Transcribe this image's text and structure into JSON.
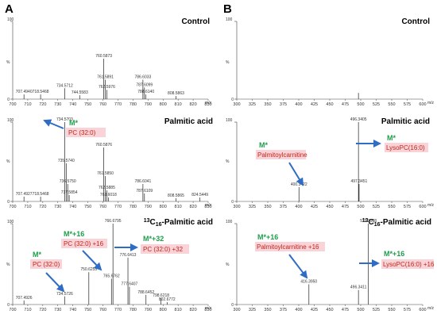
{
  "panel_letters": [
    "A",
    "B"
  ],
  "chart_data": [
    {
      "type": "bar",
      "panel": "A",
      "title": "Control",
      "xlabel": "m/z",
      "ylabel": "%",
      "xlim": [
        700,
        830
      ],
      "ylim": [
        0,
        100
      ],
      "xticks": [
        700,
        710,
        720,
        730,
        740,
        750,
        760,
        770,
        780,
        790,
        800,
        810,
        820,
        830
      ],
      "yticks": [
        0,
        100
      ],
      "peaks": [
        {
          "mz": 707.494,
          "rel": 6,
          "label": "707.4940"
        },
        {
          "mz": 718.5468,
          "rel": 6,
          "label": "718.5468"
        },
        {
          "mz": 734.5712,
          "rel": 14,
          "label": "734.5712"
        },
        {
          "mz": 744.5583,
          "rel": 5,
          "label": "744.5583"
        },
        {
          "mz": 760.5873,
          "rel": 52,
          "label": "760.5873"
        },
        {
          "mz": 761.5891,
          "rel": 25,
          "label": "761.5891"
        },
        {
          "mz": 762.5976,
          "rel": 12,
          "label": "762.5976"
        },
        {
          "mz": 786.6033,
          "rel": 25,
          "label": "786.6033"
        },
        {
          "mz": 787.6099,
          "rel": 15,
          "label": "787.6099"
        },
        {
          "mz": 788.614,
          "rel": 6,
          "label": "788.6140"
        },
        {
          "mz": 808.5863,
          "rel": 4,
          "label": "808.5863"
        }
      ],
      "annotations": []
    },
    {
      "type": "bar",
      "panel": "A",
      "title": "Palmitic acid",
      "xlabel": "m/z",
      "ylabel": "%",
      "xlim": [
        700,
        830
      ],
      "ylim": [
        0,
        100
      ],
      "xticks": [
        700,
        710,
        720,
        730,
        740,
        750,
        760,
        770,
        780,
        790,
        800,
        810,
        820,
        830
      ],
      "yticks": [
        0,
        100
      ],
      "peaks": [
        {
          "mz": 707.4927,
          "rel": 6,
          "label": "707.4927"
        },
        {
          "mz": 718.5468,
          "rel": 6,
          "label": "718.5468"
        },
        {
          "mz": 734.5703,
          "rel": 100,
          "label": "734.5703"
        },
        {
          "mz": 735.574,
          "rel": 48,
          "label": "735.5740"
        },
        {
          "mz": 736.575,
          "rel": 22,
          "label": "736.5750"
        },
        {
          "mz": 737.5854,
          "rel": 8,
          "label": "737.5854"
        },
        {
          "mz": 760.5876,
          "rel": 68,
          "label": "760.5876"
        },
        {
          "mz": 761.585,
          "rel": 32,
          "label": "761.5850"
        },
        {
          "mz": 762.5885,
          "rel": 14,
          "label": "762.5885"
        },
        {
          "mz": 763.6018,
          "rel": 5,
          "label": "763.6018"
        },
        {
          "mz": 786.6041,
          "rel": 22,
          "label": "786.6041"
        },
        {
          "mz": 787.6109,
          "rel": 10,
          "label": "787.6109"
        },
        {
          "mz": 808.5865,
          "rel": 4,
          "label": "808.5865"
        },
        {
          "mz": 824.5449,
          "rel": 5,
          "label": "824.5449"
        }
      ],
      "annotations": [
        {
          "head": "M*",
          "name": "PC (32:0)"
        }
      ]
    },
    {
      "type": "bar",
      "panel": "A",
      "title_prefix": "13",
      "title_sub": "C",
      "title_subscript": "16",
      "title_suffix": "-Palmitic acid",
      "xlabel": "m/z",
      "ylabel": "%",
      "xlim": [
        700,
        830
      ],
      "ylim": [
        0,
        100
      ],
      "xticks": [
        700,
        710,
        720,
        730,
        740,
        750,
        760,
        770,
        780,
        790,
        800,
        810,
        820,
        830
      ],
      "yticks": [
        0,
        100
      ],
      "peaks": [
        {
          "mz": 707.4926,
          "rel": 5,
          "label": "707.4926"
        },
        {
          "mz": 734.5726,
          "rel": 10,
          "label": "734.5726"
        },
        {
          "mz": 750.6255,
          "rel": 40,
          "label": "750.6255"
        },
        {
          "mz": 765.6762,
          "rel": 32,
          "label": "765.6762"
        },
        {
          "mz": 766.6795,
          "rel": 100,
          "label": "766.6795"
        },
        {
          "mz": 776.6413,
          "rel": 58,
          "label": "776.6413"
        },
        {
          "mz": 777.6407,
          "rel": 22,
          "label": "777.6407"
        },
        {
          "mz": 788.6452,
          "rel": 12,
          "label": "788.6452"
        },
        {
          "mz": 798.6218,
          "rel": 8,
          "label": "798.6218"
        },
        {
          "mz": 802.6772,
          "rel": 3,
          "label": "802.6772"
        }
      ],
      "annotations": [
        {
          "head": "M*",
          "name": "PC (32:0)"
        },
        {
          "head": "M*+16",
          "name": "PC (32:0) +16"
        },
        {
          "head": "M*+32",
          "name": "PC (32:0) +32"
        }
      ]
    },
    {
      "type": "bar",
      "panel": "B",
      "title": "Control",
      "xlabel": "m/z",
      "ylabel": "%",
      "xlim": [
        300,
        600
      ],
      "ylim": [
        0,
        100
      ],
      "xticks": [
        300,
        325,
        350,
        375,
        400,
        425,
        450,
        475,
        500,
        525,
        550,
        575,
        600
      ],
      "yticks": [
        0,
        100
      ],
      "peaks": [
        {
          "mz": 496.34,
          "rel": 8,
          "label": ""
        }
      ],
      "annotations": []
    },
    {
      "type": "bar",
      "panel": "B",
      "title": "Palmitic acid",
      "xlabel": "m/z",
      "ylabel": "%",
      "xlim": [
        300,
        600
      ],
      "ylim": [
        0,
        100
      ],
      "xticks": [
        300,
        325,
        350,
        375,
        400,
        425,
        450,
        475,
        500,
        525,
        550,
        575,
        600
      ],
      "yticks": [
        0,
        100
      ],
      "peaks": [
        {
          "mz": 400.3422,
          "rel": 18,
          "label": "400.3422"
        },
        {
          "mz": 496.3405,
          "rel": 100,
          "label": "496.3405"
        },
        {
          "mz": 497.3451,
          "rel": 22,
          "label": "497.3451"
        }
      ],
      "annotations": [
        {
          "head": "M*",
          "name": "Palmitoylcarnitine"
        },
        {
          "head": "M*",
          "name": "LysoPC(16:0)"
        }
      ]
    },
    {
      "type": "bar",
      "panel": "B",
      "title_prefix": "13",
      "title_sub": "C",
      "title_subscript": "16",
      "title_suffix": "-Palmitic acid",
      "xlabel": "m/z",
      "ylabel": "%",
      "xlim": [
        300,
        600
      ],
      "ylim": [
        0,
        100
      ],
      "xticks": [
        300,
        325,
        350,
        375,
        400,
        425,
        450,
        475,
        500,
        525,
        550,
        575,
        600
      ],
      "yticks": [
        0,
        100
      ],
      "peaks": [
        {
          "mz": 416.395,
          "rel": 25,
          "label": "416.3950"
        },
        {
          "mz": 496.3411,
          "rel": 18,
          "label": "496.3411"
        },
        {
          "mz": 512.3938,
          "rel": 100,
          "label": "512.3938"
        }
      ],
      "annotations": [
        {
          "head": "M*+16",
          "name": "Palmitoylcarnitine +16"
        },
        {
          "head": "M*+16",
          "name": "LysoPC(16:0) +16"
        }
      ]
    }
  ]
}
